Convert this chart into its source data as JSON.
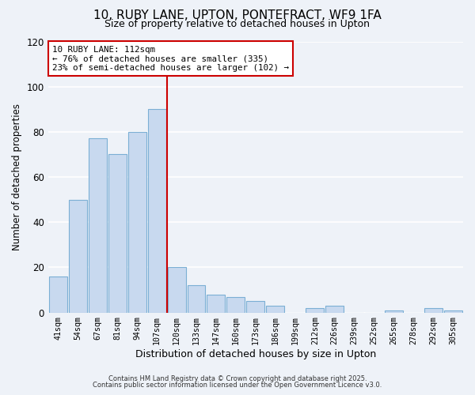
{
  "title": "10, RUBY LANE, UPTON, PONTEFRACT, WF9 1FA",
  "subtitle": "Size of property relative to detached houses in Upton",
  "xlabel": "Distribution of detached houses by size in Upton",
  "ylabel": "Number of detached properties",
  "bar_labels": [
    "41sqm",
    "54sqm",
    "67sqm",
    "81sqm",
    "94sqm",
    "107sqm",
    "120sqm",
    "133sqm",
    "147sqm",
    "160sqm",
    "173sqm",
    "186sqm",
    "199sqm",
    "212sqm",
    "226sqm",
    "239sqm",
    "252sqm",
    "265sqm",
    "278sqm",
    "292sqm",
    "305sqm"
  ],
  "bar_values": [
    16,
    50,
    77,
    70,
    80,
    90,
    20,
    12,
    8,
    7,
    5,
    3,
    0,
    2,
    3,
    0,
    0,
    1,
    0,
    2,
    1
  ],
  "bar_color": "#c8d9ef",
  "bar_edge_color": "#7bafd4",
  "vline_x_index": 6.0,
  "vline_color": "#cc0000",
  "vline_label": "10 RUBY LANE: 112sqm",
  "annotation_smaller": "← 76% of detached houses are smaller (335)",
  "annotation_larger": "23% of semi-detached houses are larger (102) →",
  "annotation_box_color": "white",
  "annotation_box_edge": "#cc0000",
  "ylim": [
    0,
    120
  ],
  "yticks": [
    0,
    20,
    40,
    60,
    80,
    100,
    120
  ],
  "footnote1": "Contains HM Land Registry data © Crown copyright and database right 2025.",
  "footnote2": "Contains public sector information licensed under the Open Government Licence v3.0.",
  "background_color": "#eef2f8",
  "grid_color": "white",
  "title_fontsize": 11,
  "subtitle_fontsize": 9
}
